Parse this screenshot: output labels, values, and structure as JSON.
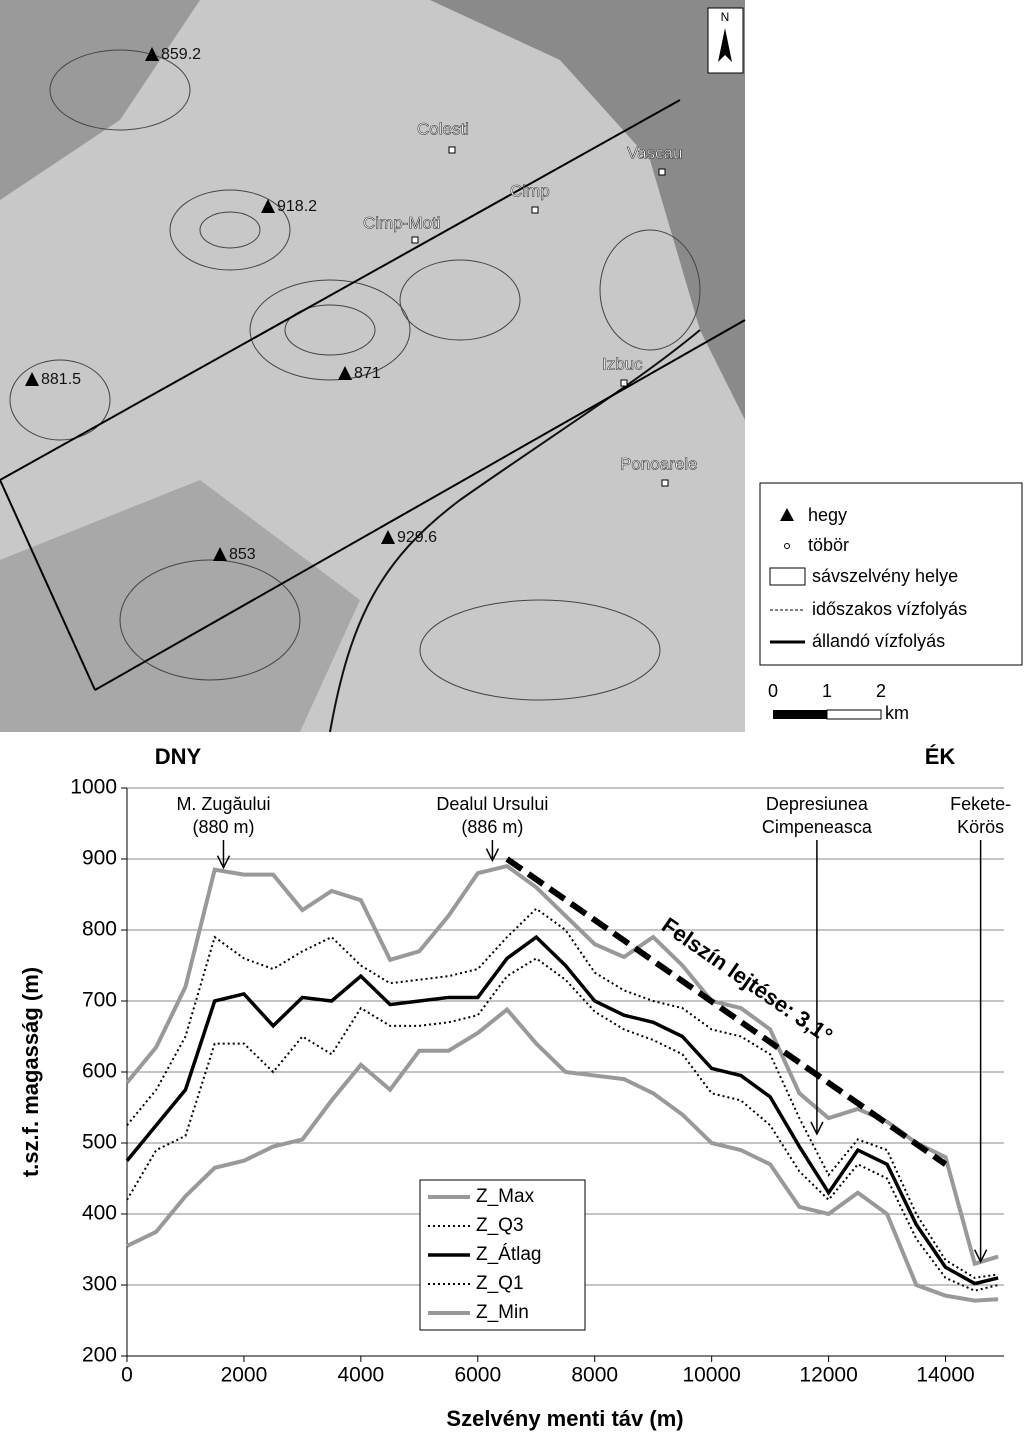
{
  "map": {
    "places": [
      "Colesti",
      "Vascau",
      "Cimp",
      "Cimp-Moti",
      "Izbuc",
      "Ponoarele"
    ],
    "peaks": [
      "859.2",
      "918.2",
      "881.5",
      "871",
      "853",
      "929.6"
    ],
    "north": "N",
    "legend": [
      "hegy",
      "töbör",
      "sávszelvény helye",
      "időszakos vízfolyás",
      "állandó vízfolyás"
    ],
    "scale": [
      "0",
      "1",
      "2",
      "km"
    ]
  },
  "chart_data": {
    "type": "line",
    "left_label": "DNY",
    "right_label": "ÉK",
    "xlabel": "Szelvény menti  táv (m)",
    "ylabel": "t.sz.f. magasság (m)",
    "x": [
      0,
      500,
      1000,
      1500,
      2000,
      2500,
      3000,
      3500,
      4000,
      4500,
      5000,
      5500,
      6000,
      6500,
      7000,
      7500,
      8000,
      8500,
      9000,
      9500,
      10000,
      10500,
      11000,
      11500,
      12000,
      12500,
      13000,
      13500,
      14000,
      14500,
      14900
    ],
    "series": [
      {
        "name": "Z_Max",
        "color": "#999999",
        "dash": "solid",
        "values": [
          585,
          635,
          720,
          885,
          878,
          878,
          828,
          855,
          842,
          758,
          770,
          820,
          880,
          890,
          860,
          820,
          780,
          762,
          790,
          750,
          700,
          690,
          660,
          570,
          535,
          548,
          530,
          500,
          480,
          330,
          340
        ]
      },
      {
        "name": "Z_Q3",
        "color": "#000000",
        "dash": "dotted",
        "values": [
          525,
          575,
          650,
          790,
          760,
          745,
          770,
          790,
          750,
          725,
          730,
          735,
          745,
          790,
          830,
          800,
          740,
          715,
          700,
          690,
          660,
          650,
          625,
          535,
          455,
          505,
          490,
          400,
          335,
          310,
          315
        ]
      },
      {
        "name": "Z_Átlag",
        "color": "#000000",
        "dash": "solid",
        "values": [
          475,
          525,
          575,
          700,
          710,
          665,
          705,
          700,
          735,
          695,
          700,
          705,
          705,
          760,
          790,
          750,
          700,
          680,
          670,
          650,
          605,
          595,
          565,
          495,
          430,
          490,
          470,
          385,
          325,
          302,
          310
        ]
      },
      {
        "name": "Z_Q1",
        "color": "#000000",
        "dash": "dotted",
        "values": [
          420,
          490,
          510,
          640,
          640,
          600,
          650,
          625,
          690,
          665,
          665,
          670,
          680,
          735,
          760,
          730,
          685,
          660,
          645,
          625,
          570,
          560,
          525,
          460,
          420,
          470,
          450,
          365,
          310,
          292,
          300
        ]
      },
      {
        "name": "Z_Min",
        "color": "#999999",
        "dash": "solid",
        "values": [
          355,
          375,
          425,
          465,
          475,
          495,
          505,
          560,
          610,
          575,
          630,
          630,
          655,
          688,
          640,
          600,
          595,
          590,
          570,
          540,
          500,
          490,
          470,
          410,
          400,
          430,
          400,
          300,
          285,
          278,
          280
        ]
      }
    ],
    "xlim": [
      0,
      15000
    ],
    "xticks": [
      0,
      2000,
      4000,
      6000,
      8000,
      10000,
      12000,
      14000
    ],
    "ylim": [
      200,
      1000
    ],
    "yticks": [
      200,
      300,
      400,
      500,
      600,
      700,
      800,
      900,
      1000
    ],
    "grid": true,
    "annotations": [
      {
        "text": [
          "M. Zugăului",
          "(880 m)"
        ],
        "x": 1650,
        "y": 885
      },
      {
        "text": [
          "Dealul Ursului",
          "(886 m)"
        ],
        "x": 6250,
        "y": 895
      },
      {
        "text": [
          "Depresiunea",
          "Cimpeneasca"
        ],
        "x": 11800,
        "y": 510
      },
      {
        "text": [
          "Fekete-",
          "Körös"
        ],
        "x": 14600,
        "y": 330
      }
    ],
    "trend": {
      "text": "Felszín lejtése: 3,1°",
      "x": [
        6500,
        14000
      ],
      "y": [
        900,
        470
      ]
    }
  }
}
